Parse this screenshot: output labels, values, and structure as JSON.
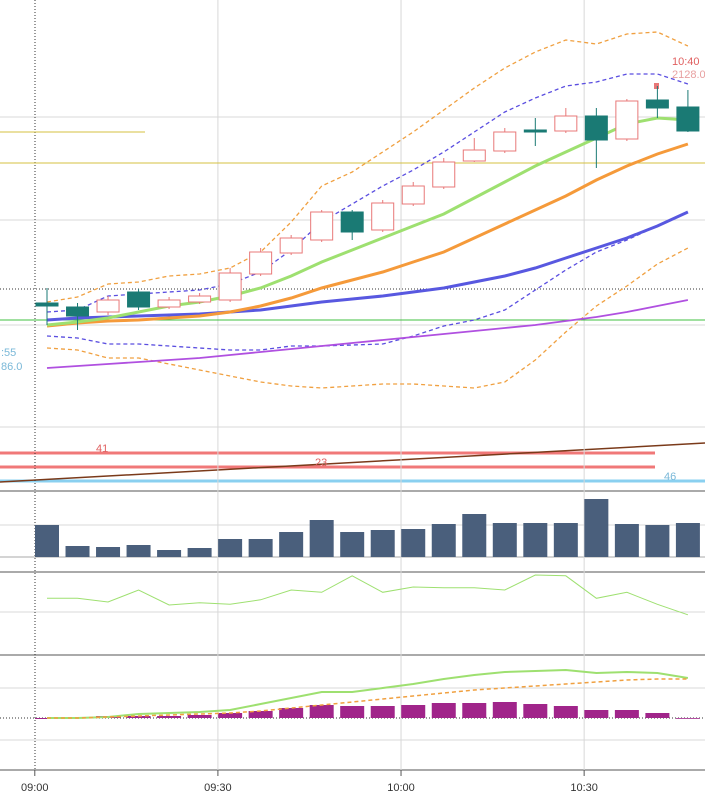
{
  "chart_data": [
    {
      "type": "candlestick",
      "x": [
        2,
        7,
        12,
        17,
        22,
        27,
        32,
        37,
        42,
        47,
        52,
        57,
        62,
        67,
        72,
        77,
        82,
        87,
        92,
        97,
        102,
        107
      ],
      "open": [
        2084.6,
        2083.8,
        2082.8,
        2086.8,
        2083.8,
        2084.8,
        2085.2,
        2090.4,
        2094.6,
        2097.2,
        2102.8,
        2099.2,
        2104.4,
        2107.8,
        2113.0,
        2115.0,
        2119.2,
        2119.0,
        2122.0,
        2117.4,
        2125.2,
        2123.8
      ],
      "high": [
        2087.6,
        2084.6,
        2086.0,
        2087.4,
        2085.8,
        2086.6,
        2091.6,
        2095.6,
        2098.2,
        2103.2,
        2103.2,
        2105.2,
        2108.8,
        2113.6,
        2117.6,
        2119.6,
        2121.6,
        2123.6,
        2123.6,
        2125.4,
        2128.0,
        2127.2
      ],
      "low": [
        2080.2,
        2079.2,
        2082.2,
        2083.2,
        2083.4,
        2084.4,
        2084.8,
        2090.0,
        2094.2,
        2096.8,
        2097.2,
        2098.8,
        2104.0,
        2107.4,
        2112.8,
        2114.6,
        2116.0,
        2118.6,
        2111.6,
        2117.0,
        2121.6,
        2118.8
      ],
      "close": [
        2084.0,
        2082.0,
        2085.2,
        2083.8,
        2085.2,
        2086.0,
        2090.6,
        2094.8,
        2097.6,
        2102.8,
        2098.8,
        2104.6,
        2108.0,
        2112.8,
        2115.2,
        2118.8,
        2118.8,
        2122.0,
        2117.2,
        2125.0,
        2123.6,
        2119.0
      ],
      "up_color": "#e87878",
      "down_color": "#1a7a74",
      "series": [
        {
          "color": "#f0a040",
          "dash": true,
          "width": 1.3,
          "values": [
            2084.8,
            2085.8,
            2088.4,
            2088.8,
            2090.0,
            2090.4,
            2091.6,
            2094.8,
            2100.8,
            2108.0,
            2110.8,
            2114.8,
            2118.8,
            2123.2,
            2127.6,
            2131.6,
            2134.8,
            2137.2,
            2136.4,
            2138.4,
            2138.8,
            2136.0
          ]
        },
        {
          "color": "#f0a040",
          "dash": true,
          "width": 1.3,
          "values": [
            2075.6,
            2075.2,
            2073.6,
            2073.6,
            2072.4,
            2071.2,
            2070.0,
            2068.8,
            2068.0,
            2067.6,
            2068.0,
            2068.4,
            2068.4,
            2068.0,
            2067.6,
            2068.8,
            2073.2,
            2078.8,
            2084.0,
            2088.0,
            2092.4,
            2095.6
          ]
        },
        {
          "color": "#5a4ee0",
          "dash": true,
          "width": 1.3,
          "values": [
            2082.8,
            2083.2,
            2086.0,
            2086.4,
            2086.8,
            2087.2,
            2088.4,
            2090.8,
            2095.2,
            2100.8,
            2104.4,
            2108.0,
            2111.2,
            2114.8,
            2118.8,
            2122.8,
            2125.6,
            2128.0,
            2128.8,
            2130.4,
            2130.4,
            2128.4
          ]
        },
        {
          "color": "#5a4ee0",
          "dash": true,
          "width": 1.3,
          "values": [
            2078.0,
            2077.6,
            2076.4,
            2076.4,
            2076.0,
            2075.6,
            2075.2,
            2075.2,
            2076.0,
            2076.0,
            2076.2,
            2076.4,
            2078.0,
            2080.0,
            2081.2,
            2083.2,
            2087.2,
            2091.2,
            2094.8,
            2097.2,
            2100.0,
            2102.8
          ]
        },
        {
          "color": "#b050e0",
          "dash": false,
          "width": 1.8,
          "values": [
            2071.6,
            2072.0,
            2072.4,
            2072.8,
            2073.2,
            2073.6,
            2074.2,
            2074.8,
            2075.4,
            2076.0,
            2076.6,
            2077.2,
            2077.8,
            2078.4,
            2079.0,
            2079.6,
            2080.2,
            2081.0,
            2081.8,
            2082.8,
            2084.0,
            2085.2
          ]
        },
        {
          "color": "#5858e0",
          "dash": false,
          "width": 3,
          "values": [
            2081.2,
            2081.6,
            2081.8,
            2082.0,
            2082.2,
            2082.4,
            2082.8,
            2083.2,
            2084.0,
            2084.8,
            2085.4,
            2086.0,
            2086.8,
            2087.6,
            2088.8,
            2090.0,
            2091.6,
            2093.6,
            2095.6,
            2097.6,
            2100.0,
            2102.8
          ]
        },
        {
          "color": "#f59a3a",
          "dash": false,
          "width": 3,
          "values": [
            2080.0,
            2080.6,
            2081.0,
            2081.2,
            2081.6,
            2082.0,
            2082.8,
            2084.0,
            2085.6,
            2087.6,
            2089.2,
            2090.8,
            2092.8,
            2094.8,
            2097.6,
            2100.4,
            2103.2,
            2106.0,
            2109.2,
            2112.0,
            2114.4,
            2116.4
          ]
        },
        {
          "color": "#9ee070",
          "dash": false,
          "width": 3,
          "values": [
            2080.2,
            2080.8,
            2081.6,
            2082.8,
            2084.0,
            2084.8,
            2086.0,
            2087.6,
            2090.0,
            2092.8,
            2095.2,
            2097.6,
            2100.0,
            2102.4,
            2105.6,
            2108.8,
            2112.0,
            2114.8,
            2117.6,
            2120.4,
            2121.6,
            2121.2
          ]
        }
      ],
      "levels": [
        {
          "value": 2118.8,
          "color": "#d4c040"
        },
        {
          "value": 2112.6,
          "color": "#d4c040"
        },
        {
          "value": 2081.2,
          "color": "#40c040"
        },
        {
          "value": 2087.4,
          "color": "#333333"
        }
      ],
      "annotations": [
        ":55",
        "86.0",
        "10:40",
        "2128.0",
        "41",
        "23",
        "46"
      ],
      "xlim": [
        -5.7,
        109.8
      ],
      "xticks": [
        {
          "value": 0,
          "label": "09:00"
        },
        {
          "value": 30,
          "label": "09:30"
        },
        {
          "value": 60,
          "label": "10:00"
        },
        {
          "value": 90,
          "label": "10:30"
        }
      ],
      "ylim": [
        2057.2,
        2145.2
      ]
    },
    {
      "type": "bar",
      "color": "#4a5f7c",
      "values": [
        3200,
        1100,
        1000,
        1200,
        700,
        900,
        1800,
        1800,
        2500,
        3700,
        2500,
        2700,
        2800,
        3300,
        4300,
        3400,
        3400,
        3400,
        5800,
        3300,
        3200,
        3400
      ],
      "ylim": [
        0,
        6200
      ]
    },
    {
      "type": "line",
      "color": "#9ee070",
      "values": [
        69,
        69,
        64,
        80,
        60,
        63,
        61,
        67,
        80,
        77,
        99,
        77,
        84,
        83,
        83,
        80,
        100,
        99,
        69,
        77,
        61,
        47
      ],
      "ylim": [
        0,
        100
      ]
    },
    {
      "type": "macd",
      "color": "#a0258a",
      "values": [
        -0.1,
        0.1,
        0.2,
        0.2,
        0.2,
        0.3,
        0.5,
        0.7,
        1.0,
        1.3,
        1.2,
        1.2,
        1.3,
        1.5,
        1.5,
        1.6,
        1.4,
        1.2,
        0.8,
        0.8,
        0.5,
        0.0
      ],
      "series": [
        {
          "color": "#9ee070",
          "dash": false,
          "width": 2,
          "values": [
            0,
            0,
            0.1,
            0.4,
            0.5,
            0.6,
            0.8,
            1.4,
            2.0,
            2.6,
            2.6,
            3.0,
            3.4,
            3.9,
            4.3,
            4.6,
            4.7,
            4.8,
            4.5,
            4.6,
            4.5,
            4.0
          ]
        },
        {
          "color": "#f0a040",
          "dash": true,
          "width": 1.5,
          "values": [
            0,
            0,
            0.1,
            0.2,
            0.3,
            0.4,
            0.5,
            0.7,
            1.0,
            1.3,
            1.6,
            1.9,
            2.2,
            2.5,
            2.8,
            3.0,
            3.2,
            3.4,
            3.6,
            3.8,
            3.9,
            3.9
          ]
        }
      ],
      "ylim": [
        -5.2,
        6.0
      ]
    }
  ]
}
